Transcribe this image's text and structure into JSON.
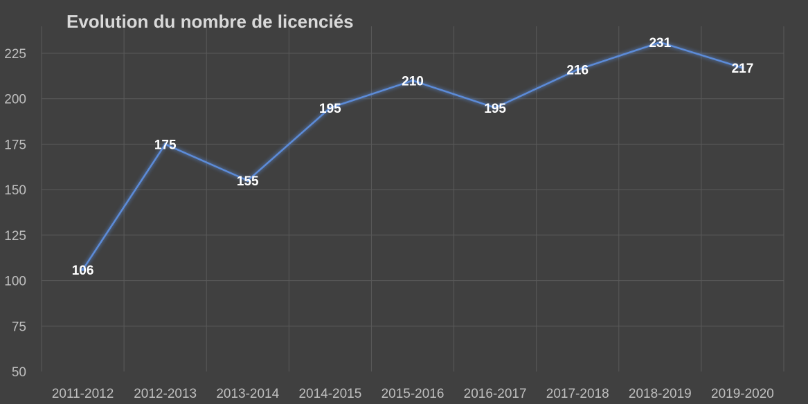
{
  "chart_data": {
    "type": "line",
    "title": "Evolution du nombre de licenciés",
    "xlabel": "",
    "ylabel": "",
    "categories": [
      "2011-2012",
      "2012-2013",
      "2013-2014",
      "2014-2015",
      "2015-2016",
      "2016-2017",
      "2017-2018",
      "2018-2019",
      "2019-2020"
    ],
    "series": [
      {
        "values": [
          106,
          175,
          155,
          195,
          210,
          195,
          216,
          231,
          217
        ]
      }
    ],
    "ylim": [
      50,
      225
    ],
    "yticks": [
      50,
      75,
      100,
      125,
      150,
      175,
      200,
      225
    ],
    "data_labels": true,
    "grid": true,
    "legend": "none",
    "colors": {
      "background": "#404040",
      "line": "#5b8bd8",
      "grid": "#5a5a5a",
      "tick_text": "#bfbfbf",
      "label_text": "#ffffff",
      "title_text": "#d9d9d9"
    }
  }
}
